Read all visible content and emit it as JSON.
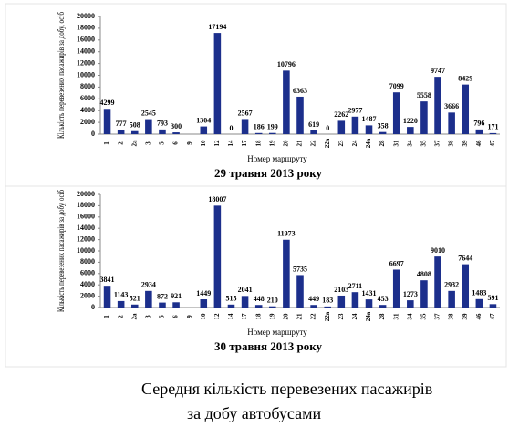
{
  "chart_data": [
    {
      "type": "bar",
      "title": "29 травня 2013 року",
      "xlabel": "Номер маршруту",
      "ylabel": "Кількість перевезених пасажирів за добу, осіб",
      "categories": [
        "1",
        "2",
        "2a",
        "3",
        "5",
        "6",
        "9",
        "10",
        "12",
        "14",
        "17",
        "18",
        "19",
        "20",
        "21",
        "22",
        "22a",
        "23",
        "24",
        "24a",
        "28",
        "31",
        "34",
        "35",
        "37",
        "38",
        "39",
        "46",
        "47"
      ],
      "values": [
        4299,
        777,
        508,
        2545,
        793,
        300,
        null,
        1304,
        17194,
        0,
        2567,
        186,
        199,
        10796,
        6363,
        619,
        0,
        2262,
        2977,
        1487,
        358,
        7099,
        1220,
        5558,
        9747,
        3666,
        8429,
        796,
        171
      ],
      "color": "#1c2f8c",
      "ylim": [
        0,
        20000
      ],
      "yticks": [
        0,
        2000,
        4000,
        6000,
        8000,
        10000,
        12000,
        14000,
        16000,
        18000,
        20000
      ]
    },
    {
      "type": "bar",
      "title": "30 травня 2013 року",
      "xlabel": "Номер маршруту",
      "ylabel": "Кількість перевезених пасажирів за добу, осіб",
      "categories": [
        "1",
        "2",
        "2a",
        "3",
        "5",
        "6",
        "9",
        "10",
        "12",
        "14",
        "17",
        "18",
        "19",
        "20",
        "21",
        "22",
        "22a",
        "23",
        "24",
        "24a",
        "28",
        "31",
        "34",
        "35",
        "37",
        "38",
        "39",
        "46",
        "47"
      ],
      "values": [
        3841,
        1143,
        521,
        2934,
        872,
        921,
        null,
        1449,
        18007,
        515,
        2041,
        448,
        210,
        11973,
        5735,
        449,
        183,
        2103,
        2711,
        1431,
        453,
        6697,
        1273,
        4808,
        9010,
        2932,
        7644,
        1483,
        591
      ],
      "color": "#1c2f8c",
      "ylim": [
        0,
        20000
      ],
      "yticks": [
        0,
        2000,
        4000,
        6000,
        8000,
        10000,
        12000,
        14000,
        16000,
        18000,
        20000
      ]
    }
  ],
  "caption": [
    "Середня кількість перевезених пасажирів",
    "за добу автобусами"
  ]
}
